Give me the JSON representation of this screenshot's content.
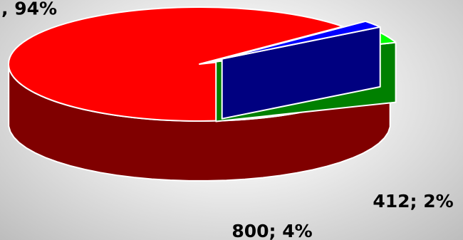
{
  "chart_data": {
    "type": "pie",
    "style": "3d-exploded",
    "slices": [
      {
        "label": ", 94%",
        "value": 19000,
        "percent": 94,
        "color_top": "#ff0000",
        "color_side": "#800000"
      },
      {
        "label": "800; 4%",
        "value": 800,
        "percent": 4,
        "color_top": "#00ff00",
        "color_side": "#008000"
      },
      {
        "label": "412; 2%",
        "value": 412,
        "percent": 2,
        "color_top": "#0000ff",
        "color_side": "#000080"
      }
    ],
    "label_color": "#000000",
    "edge_color": "#ffffff",
    "background": "#e8e8e8"
  }
}
